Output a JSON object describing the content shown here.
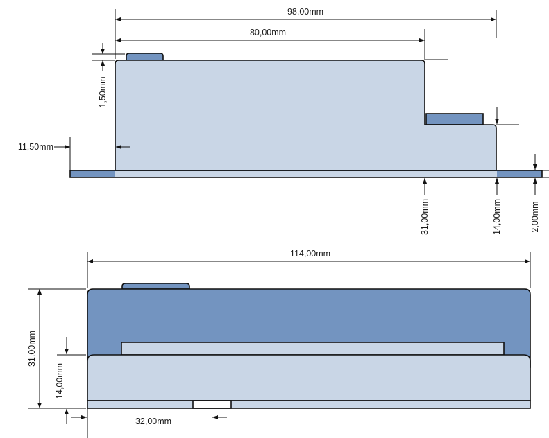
{
  "colors": {
    "light_body": "#c9d6e6",
    "dark_body": "#7394c0",
    "rail": "#7394c0",
    "rail_strip": "#c9d6e6",
    "notch": "#ffffff",
    "outline": "#111111",
    "dimension_line": "#111111"
  },
  "top_view": {
    "dimensions": {
      "width_total": "98,00mm",
      "width_lower": "80,00mm",
      "tab_height": "1,50mm",
      "left_offset": "11,50mm",
      "height_total": "31,00mm",
      "height_step": "14,00mm",
      "rail_height": "2,00mm"
    }
  },
  "front_view": {
    "dimensions": {
      "width_total": "114,00mm",
      "height_total": "31,00mm",
      "height_lower": "14,00mm",
      "notch_offset": "32,00mm"
    }
  }
}
